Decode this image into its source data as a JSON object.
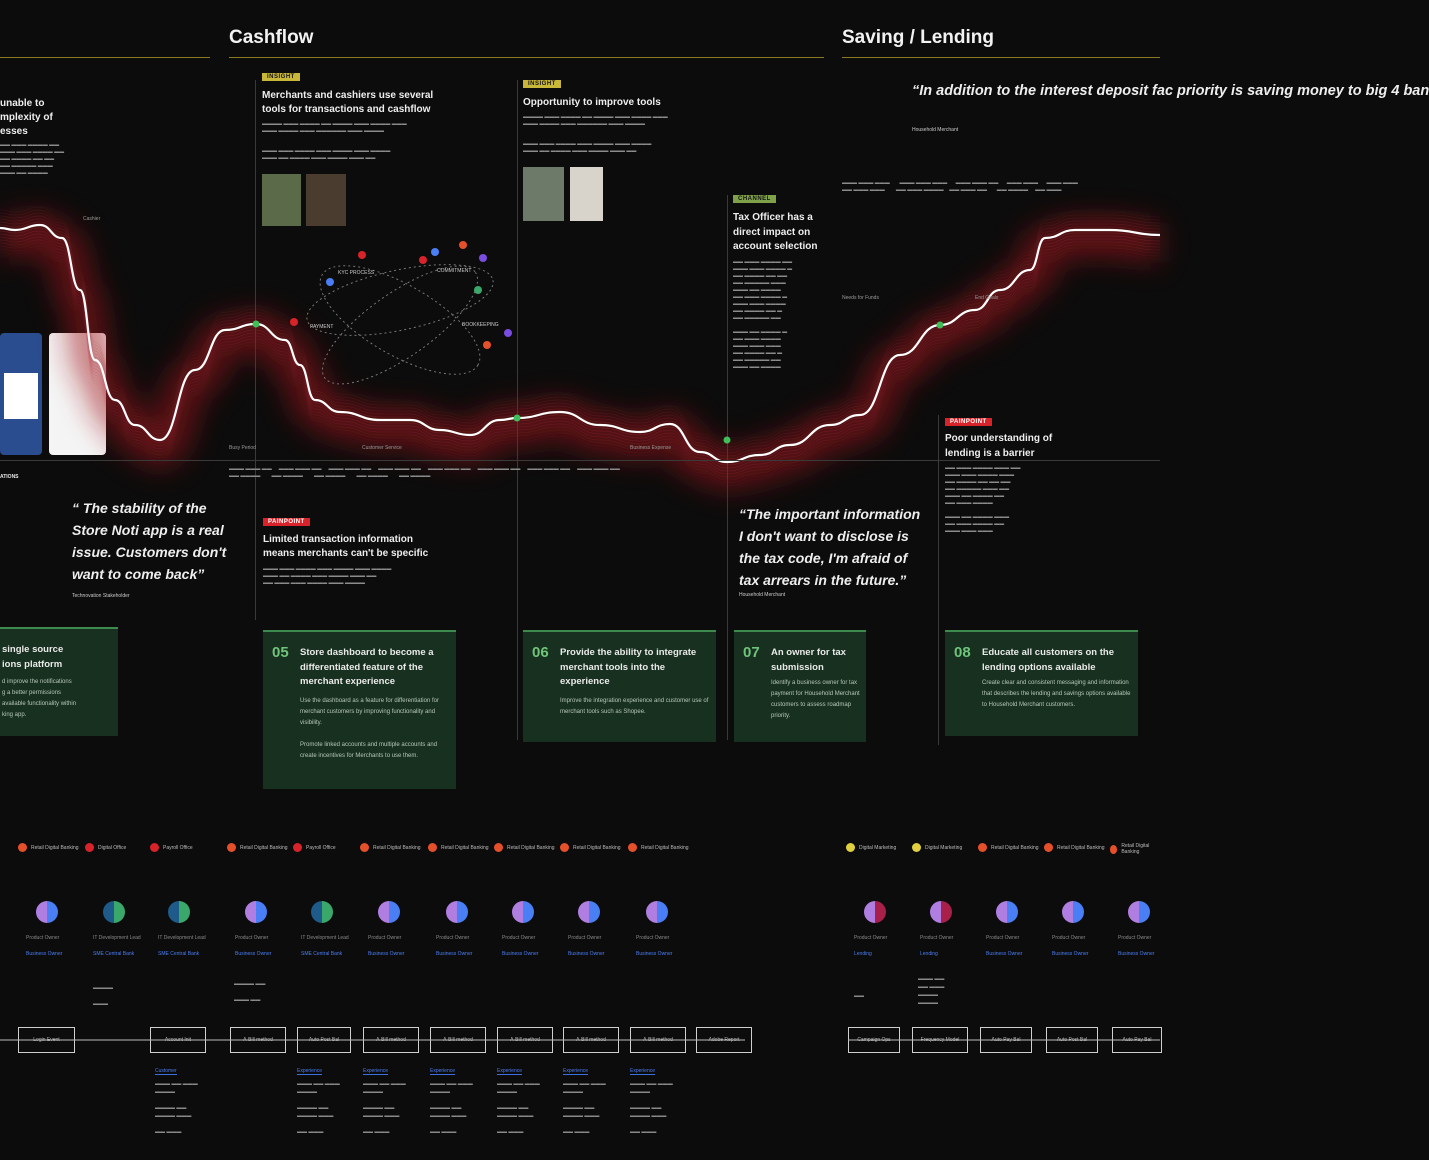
{
  "sections": {
    "cashflow": "Cashflow",
    "saving": "Saving / Lending"
  },
  "left_fragment": {
    "heading": "unable to\nmplexity of\nesses",
    "card_title": "single source\nions platform",
    "card_body": "d improve the notifications\ng a better permissions\navailable functionality within\nking app.",
    "side_label": "ATIONS"
  },
  "insight1": {
    "tag": "INSIGHT",
    "title": "Merchants and cashiers use several tools for transactions and cashflow"
  },
  "insight2": {
    "tag": "INSIGHT",
    "title": "Opportunity to improve tools"
  },
  "channel": {
    "tag": "CHANNEL",
    "title": "Tax Officer has a direct impact on account selection"
  },
  "pain1": {
    "tag": "PAINPOINT",
    "title": "Limited transaction information means merchants can't be specific"
  },
  "pain2": {
    "tag": "PAINPOINT",
    "title": "Poor understanding of lending is a barrier"
  },
  "orbit_labels": [
    "KYC PROCESS",
    "COMMITMENT",
    "PAYMENT",
    "BOOKKEEPING"
  ],
  "stage_labels": [
    "Cashier",
    "Busy Period",
    "Customer Service",
    "Business Expense",
    "Needs for Funds",
    "End Goals"
  ],
  "quotes": {
    "q1": "“ The stability of the Store Noti app is a real issue. Customers don't want to come back”",
    "q1_src": "Technovation Stakeholder",
    "q2": "“The important information I don't want to disclose is the tax code, I'm afraid of tax arrears in the future.”",
    "q2_src": "Household Merchant",
    "q3": "“In addition to the interest deposit fac priority is saving money to big 4 ban",
    "q3_src": "Household Merchant"
  },
  "cards": [
    {
      "num": "05",
      "title": "Store dashboard to become a differentiated feature of the merchant experience",
      "body": "Use the dashboard as a feature for differentiation for merchant customers by improving functionality and visibility.",
      "body2": "Promote linked accounts and multiple accounts and create incentives for Merchants to use them."
    },
    {
      "num": "06",
      "title": "Provide the ability to integrate merchant tools into the experience",
      "body": "Improve the integration experience and customer use of merchant tools such as Shopee."
    },
    {
      "num": "07",
      "title": "An owner for tax submission",
      "body": "Identify a business owner for tax payment for Household Merchant customers to assess roadmap priority."
    },
    {
      "num": "08",
      "title": "Educate all customers on the lending options available",
      "body": "Create clear and consistent messaging and information that describes the lending and savings options available to Household Merchant customers."
    }
  ],
  "legend": [
    {
      "color": "#e5502b",
      "label": "Retail Digital Banking"
    },
    {
      "color": "#d8232a",
      "label": "Digital Office"
    },
    {
      "color": "#d8232a",
      "label": "Payroll Office"
    },
    {
      "color": "#e5502b",
      "label": "Retail Digital Banking"
    },
    {
      "color": "#d8232a",
      "label": "Payroll Office"
    },
    {
      "color": "#e5502b",
      "label": "Retail Digital Banking"
    },
    {
      "color": "#e5502b",
      "label": "Retail Digital Banking"
    },
    {
      "color": "#e5502b",
      "label": "Retail Digital Banking"
    },
    {
      "color": "#e5502b",
      "label": "Retail Digital Banking"
    },
    {
      "color": "#e5502b",
      "label": "Retail Digital Banking"
    },
    {
      "color": "#e0d040",
      "label": "Digital Marketing"
    },
    {
      "color": "#e0d040",
      "label": "Digital Marketing"
    },
    {
      "color": "#e5502b",
      "label": "Retail Digital Banking"
    },
    {
      "color": "#e5502b",
      "label": "Retail Digital Banking"
    },
    {
      "color": "#e5502b",
      "label": "Retail Digital Banking"
    }
  ],
  "pies": [
    {
      "c1": "#4a7ef5",
      "c2": "#b07ee0",
      "label": "Product Owner",
      "sub": "Business Owner"
    },
    {
      "c1": "#3aa86a",
      "c2": "#1e5a8a",
      "label": "IT Development Lead",
      "sub": "SME Central Bank"
    },
    {
      "c1": "#3aa86a",
      "c2": "#1e5a8a",
      "label": "IT Development Lead",
      "sub": "SME Central Bank"
    },
    {
      "c1": "#4a7ef5",
      "c2": "#b07ee0",
      "label": "Product Owner",
      "sub": "Business Owner"
    },
    {
      "c1": "#3aa86a",
      "c2": "#1e5a8a",
      "label": "IT Development Lead",
      "sub": "SME Central Bank"
    },
    {
      "c1": "#4a7ef5",
      "c2": "#b07ee0",
      "label": "Product Owner",
      "sub": "Business Owner"
    },
    {
      "c1": "#4a7ef5",
      "c2": "#b07ee0",
      "label": "Product Owner",
      "sub": "Business Owner"
    },
    {
      "c1": "#4a7ef5",
      "c2": "#b07ee0",
      "label": "Product Owner",
      "sub": "Business Owner"
    },
    {
      "c1": "#4a7ef5",
      "c2": "#b07ee0",
      "label": "Product Owner",
      "sub": "Business Owner"
    },
    {
      "c1": "#4a7ef5",
      "c2": "#b07ee0",
      "label": "Product Owner",
      "sub": "Business Owner"
    },
    {
      "c1": "#a8204a",
      "c2": "#b07ee0",
      "label": "Product Owner",
      "sub": "Lending"
    },
    {
      "c1": "#a8204a",
      "c2": "#b07ee0",
      "label": "Product Owner",
      "sub": "Lending"
    },
    {
      "c1": "#4a7ef5",
      "c2": "#b07ee0",
      "label": "Product Owner",
      "sub": "Business Owner"
    },
    {
      "c1": "#4a7ef5",
      "c2": "#b07ee0",
      "label": "Product Owner",
      "sub": "Business Owner"
    },
    {
      "c1": "#4a7ef5",
      "c2": "#b07ee0",
      "label": "Product Owner",
      "sub": "Business Owner"
    }
  ],
  "flow_boxes": [
    "Login Event",
    "Account Init",
    "A-Bill method",
    "Auto Post Bal",
    "A-Bill method",
    "A-Bill method",
    "A-Bill method",
    "A-Bill method",
    "A-Bill method",
    "Adobe Report",
    "Campaign Ops",
    "Frequency Model",
    "Auto Pay Bal",
    "Auto Post Bal",
    "Auto Pay Bal"
  ],
  "systems": [
    "Customer",
    "Experience",
    "Experience",
    "Experience",
    "Experience",
    "Experience",
    "Experience"
  ]
}
